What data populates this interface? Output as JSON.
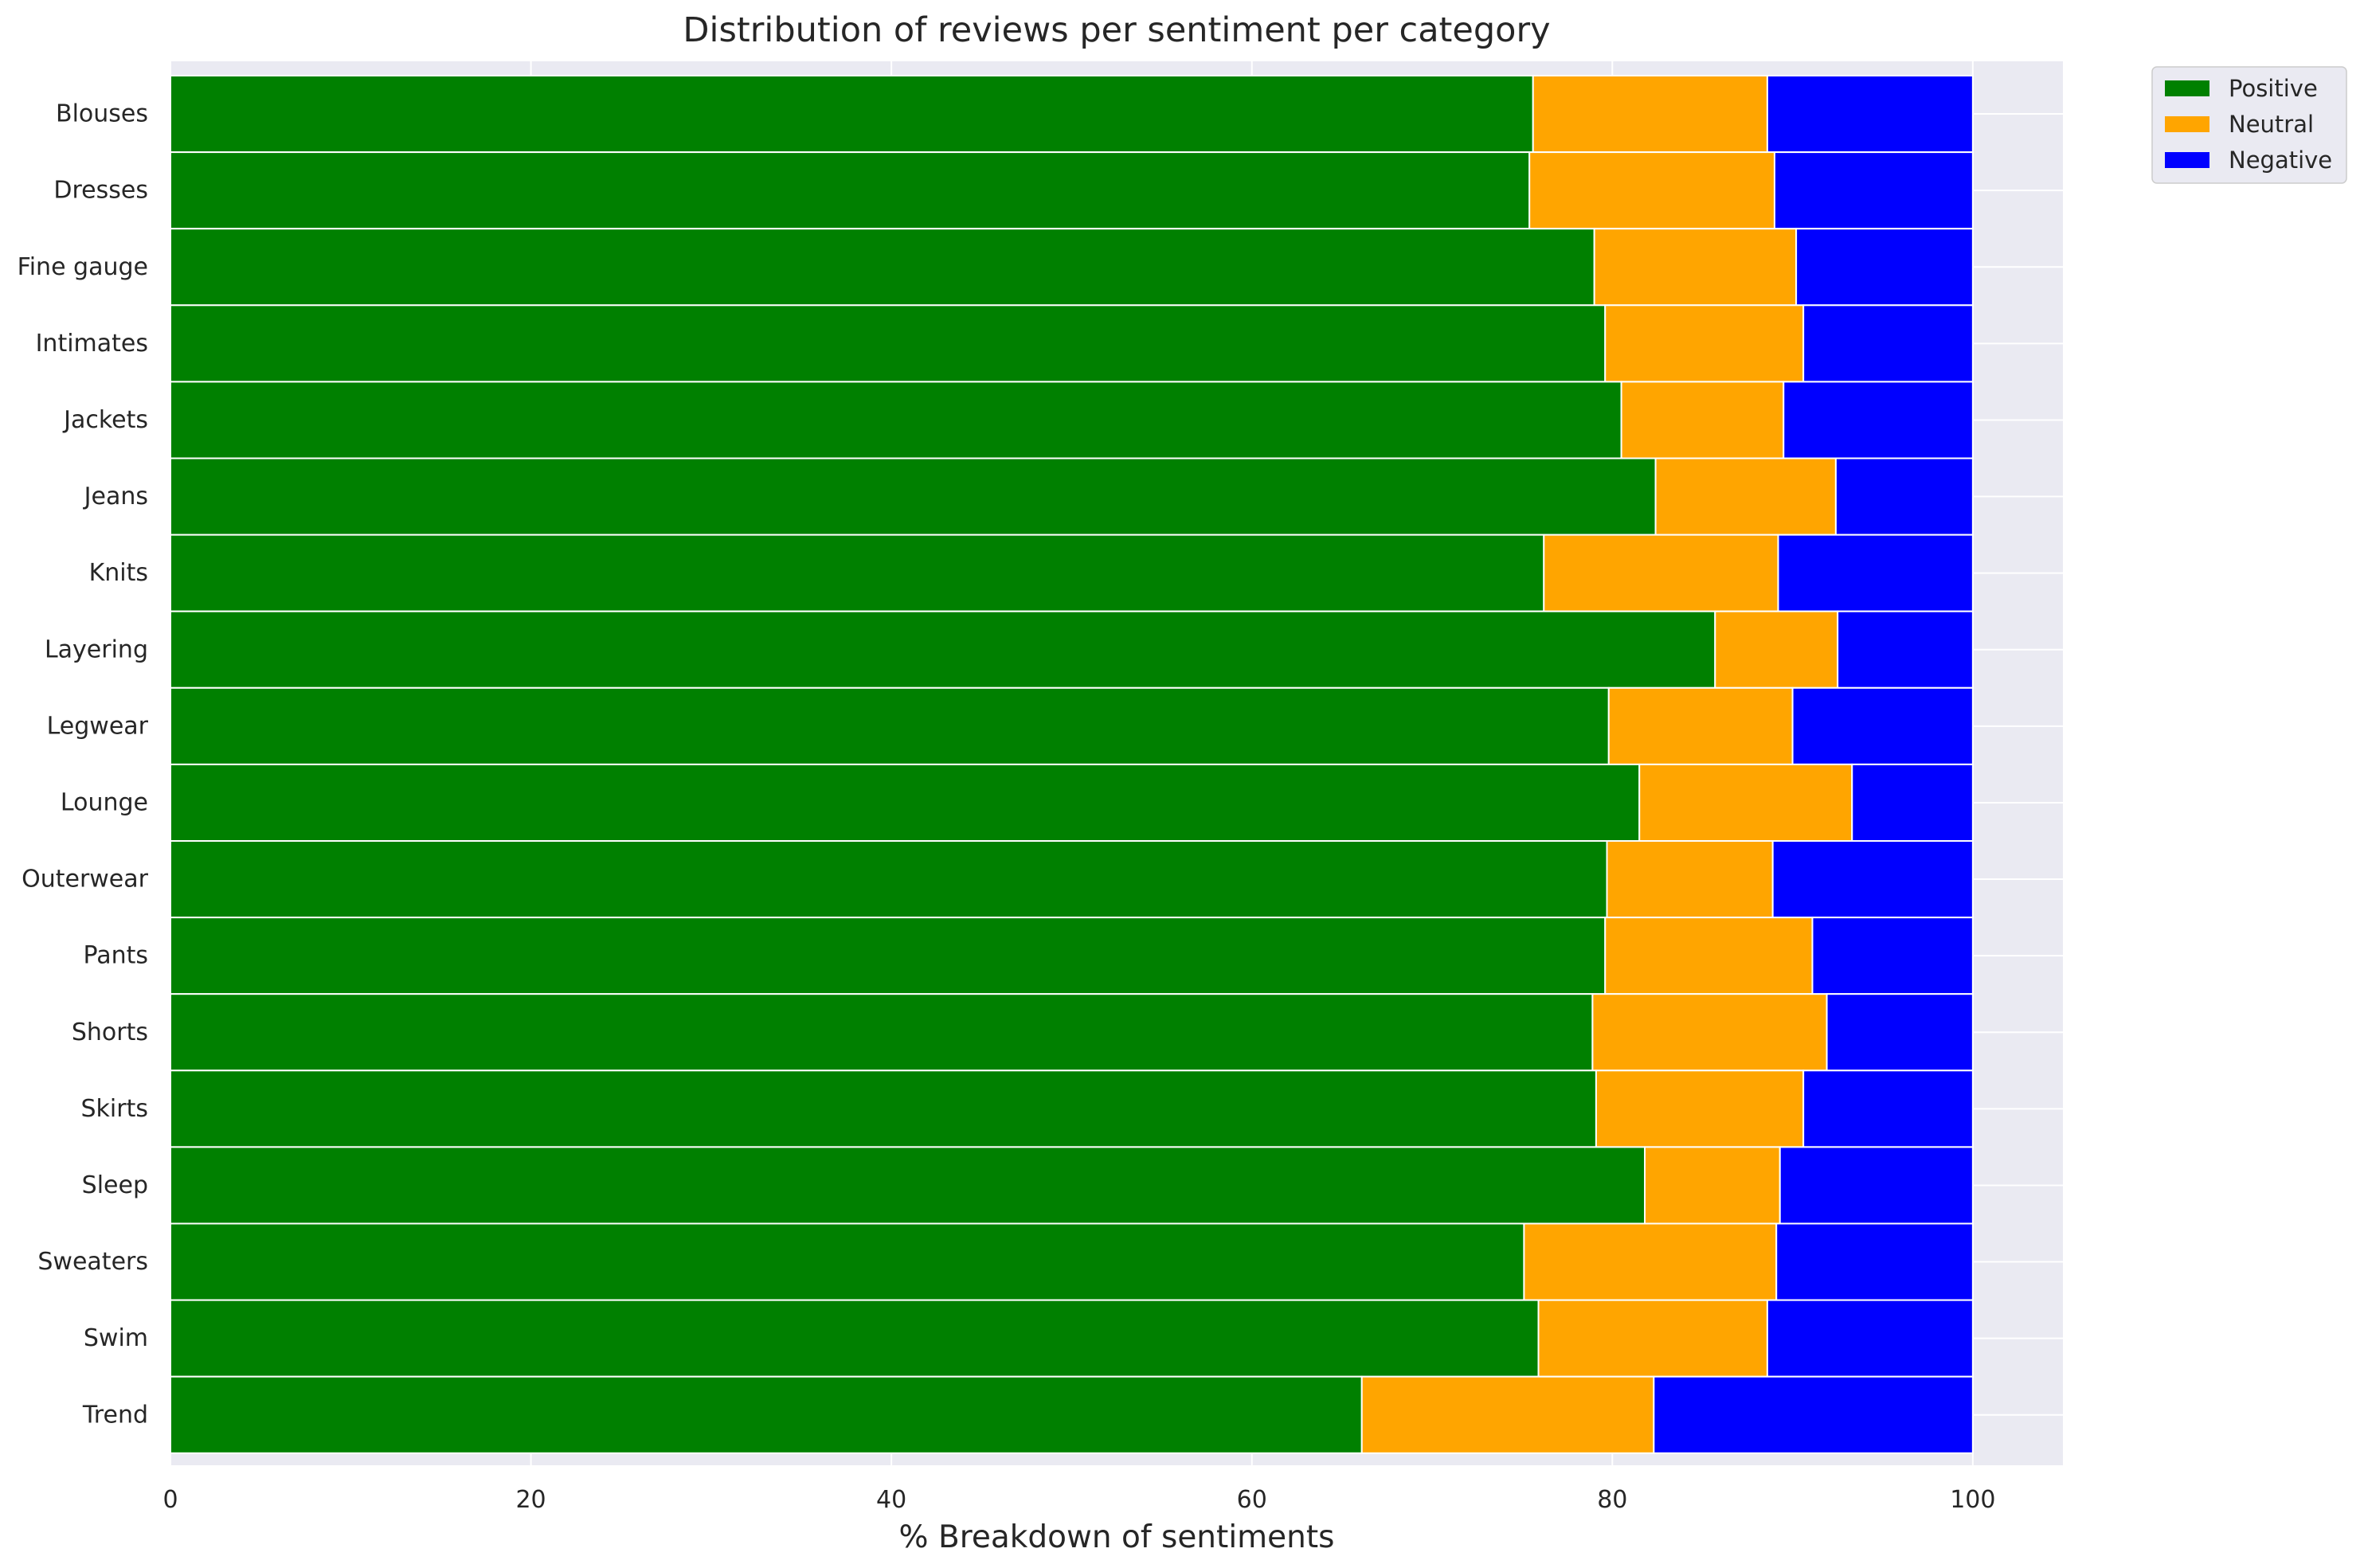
{
  "chart_data": {
    "type": "bar",
    "orientation": "horizontal",
    "stacked": true,
    "title": "Distribution of reviews per sentiment per category",
    "xlabel": "% Breakdown of sentiments",
    "ylabel": "",
    "xlim": [
      0,
      105
    ],
    "xticks": [
      0,
      20,
      40,
      60,
      80,
      100
    ],
    "grid": true,
    "legend_position": "outside-top-right",
    "categories": [
      "Blouses",
      "Dresses",
      "Fine gauge",
      "Intimates",
      "Jackets",
      "Jeans",
      "Knits",
      "Layering",
      "Legwear",
      "Lounge",
      "Outerwear",
      "Pants",
      "Shorts",
      "Skirts",
      "Sleep",
      "Sweaters",
      "Swim",
      "Trend"
    ],
    "series": [
      {
        "name": "Positive",
        "color": "#008000",
        "values": [
          75.6,
          75.4,
          79.0,
          79.6,
          80.5,
          82.4,
          76.2,
          85.7,
          79.8,
          81.5,
          79.7,
          79.6,
          78.9,
          79.1,
          81.8,
          75.1,
          75.9,
          66.1
        ]
      },
      {
        "name": "Neutral",
        "color": "#FFA500",
        "values": [
          13.0,
          13.6,
          11.2,
          11.0,
          9.0,
          10.0,
          13.0,
          6.8,
          10.2,
          11.8,
          9.2,
          11.5,
          13.0,
          11.5,
          7.5,
          14.0,
          12.7,
          16.2
        ]
      },
      {
        "name": "Negative",
        "color": "#0000FF",
        "values": [
          11.4,
          11.0,
          9.8,
          9.4,
          10.5,
          7.6,
          10.8,
          7.5,
          10.0,
          6.7,
          11.1,
          8.9,
          8.1,
          9.4,
          10.7,
          10.9,
          11.4,
          17.7
        ]
      }
    ]
  },
  "colors": {
    "plot_background": "#EAEAF2",
    "grid": "#FFFFFF",
    "text": "#262626"
  }
}
